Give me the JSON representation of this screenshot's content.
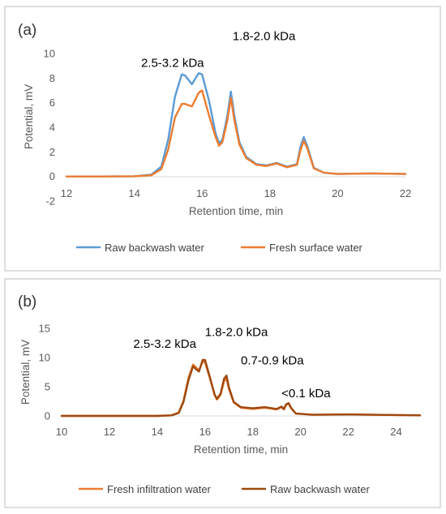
{
  "chart_data": [
    {
      "type": "line",
      "panel_label": "(a)",
      "xlabel": "Retention time, min",
      "ylabel": "Potential, mV",
      "xlim": [
        12,
        22
      ],
      "ylim": [
        -2,
        10
      ],
      "xticks": [
        12,
        14,
        16,
        18,
        20,
        22
      ],
      "yticks": [
        -2,
        0,
        2,
        4,
        6,
        8,
        10
      ],
      "grid": false,
      "legend_position": "bottom",
      "annotations": [
        {
          "text": "1.8-2.0 kDa",
          "x": 16.9,
          "y": 11.1
        },
        {
          "text": "2.5-3.2 kDa",
          "x": 14.2,
          "y": 8.9
        }
      ],
      "series": [
        {
          "name": "Raw backwash water",
          "color": "#5b9bd5",
          "x": [
            12,
            13,
            14,
            14.5,
            14.8,
            15.0,
            15.2,
            15.4,
            15.5,
            15.7,
            15.9,
            16.0,
            16.2,
            16.4,
            16.5,
            16.6,
            16.75,
            16.85,
            16.95,
            17.1,
            17.3,
            17.6,
            17.9,
            18.2,
            18.5,
            18.8,
            18.9,
            19.0,
            19.1,
            19.3,
            19.6,
            20.0,
            21.0,
            22.0
          ],
          "y": [
            0,
            0,
            0.02,
            0.15,
            0.8,
            3.0,
            6.5,
            8.3,
            8.2,
            7.5,
            8.4,
            8.3,
            6.2,
            3.5,
            2.7,
            3.0,
            5.0,
            6.9,
            5.0,
            2.8,
            1.6,
            1.0,
            0.9,
            1.1,
            0.8,
            1.0,
            2.4,
            3.2,
            2.5,
            0.7,
            0.3,
            0.2,
            0.25,
            0.2
          ]
        },
        {
          "name": "Fresh surface water",
          "color": "#ed7d31",
          "x": [
            12,
            13,
            14,
            14.5,
            14.8,
            15.0,
            15.2,
            15.4,
            15.5,
            15.7,
            15.9,
            16.0,
            16.2,
            16.4,
            16.5,
            16.6,
            16.75,
            16.85,
            16.95,
            17.1,
            17.3,
            17.6,
            17.9,
            18.2,
            18.5,
            18.8,
            18.9,
            19.0,
            19.1,
            19.3,
            19.6,
            20.0,
            21.0,
            22.0
          ],
          "y": [
            0,
            0,
            0.02,
            0.1,
            0.6,
            2.2,
            4.8,
            5.9,
            5.9,
            5.7,
            6.8,
            7.0,
            5.0,
            3.2,
            2.5,
            2.8,
            4.6,
            6.4,
            4.6,
            2.6,
            1.5,
            0.95,
            0.85,
            1.05,
            0.75,
            0.95,
            2.1,
            2.9,
            2.3,
            0.65,
            0.3,
            0.2,
            0.25,
            0.2
          ]
        }
      ]
    },
    {
      "type": "line",
      "panel_label": "(b)",
      "xlabel": "Retention time, min",
      "ylabel": "Potential, mV",
      "xlim": [
        10,
        25
      ],
      "ylim": [
        0,
        15
      ],
      "xticks": [
        10,
        12,
        14,
        16,
        18,
        20,
        22,
        24
      ],
      "yticks": [
        0,
        5,
        10,
        15
      ],
      "grid": false,
      "legend_position": "bottom",
      "annotations": [
        {
          "text": "2.5-3.2 kDa",
          "x": 13.0,
          "y": 11.7
        },
        {
          "text": "1.8-2.0 kDa",
          "x": 16.0,
          "y": 13.7
        },
        {
          "text": "0.7-0.9 kDa",
          "x": 17.5,
          "y": 8.8
        },
        {
          "text": "<0.1 kDa",
          "x": 19.2,
          "y": 3.2
        }
      ],
      "series": [
        {
          "name": "Fresh infiltration water",
          "color": "#ed7d31",
          "x": [
            10,
            12,
            14,
            14.6,
            14.9,
            15.1,
            15.3,
            15.5,
            15.6,
            15.75,
            15.9,
            16.0,
            16.2,
            16.4,
            16.5,
            16.65,
            16.8,
            16.9,
            17.0,
            17.2,
            17.5,
            18.0,
            18.5,
            19.0,
            19.2,
            19.3,
            19.4,
            19.5,
            19.6,
            19.8,
            20.5,
            22,
            24,
            25
          ],
          "y": [
            0,
            0,
            0,
            0.1,
            0.6,
            2.6,
            6.4,
            8.8,
            8.4,
            7.8,
            9.3,
            9.2,
            6.5,
            3.6,
            2.8,
            3.6,
            6.0,
            6.4,
            4.6,
            2.3,
            1.4,
            1.2,
            1.4,
            1.1,
            1.5,
            1.1,
            1.9,
            2.1,
            1.3,
            0.4,
            0.2,
            0.25,
            0.15,
            0.1
          ]
        },
        {
          "name": "Raw backwash water",
          "color": "#9e480e",
          "x": [
            10,
            12,
            14,
            14.6,
            14.9,
            15.1,
            15.3,
            15.5,
            15.6,
            15.75,
            15.9,
            16.0,
            16.2,
            16.4,
            16.5,
            16.65,
            16.8,
            16.9,
            17.0,
            17.2,
            17.5,
            18.0,
            18.5,
            19.0,
            19.2,
            19.3,
            19.4,
            19.5,
            19.6,
            19.8,
            20.5,
            22,
            24,
            25
          ],
          "y": [
            0,
            0,
            0,
            0.1,
            0.5,
            2.4,
            6.0,
            8.5,
            8.1,
            7.6,
            9.6,
            9.6,
            6.7,
            3.7,
            2.9,
            3.8,
            6.4,
            6.9,
            4.9,
            2.4,
            1.5,
            1.3,
            1.5,
            1.2,
            1.6,
            1.2,
            2.0,
            2.2,
            1.4,
            0.4,
            0.2,
            0.25,
            0.15,
            0.1
          ]
        }
      ]
    }
  ]
}
